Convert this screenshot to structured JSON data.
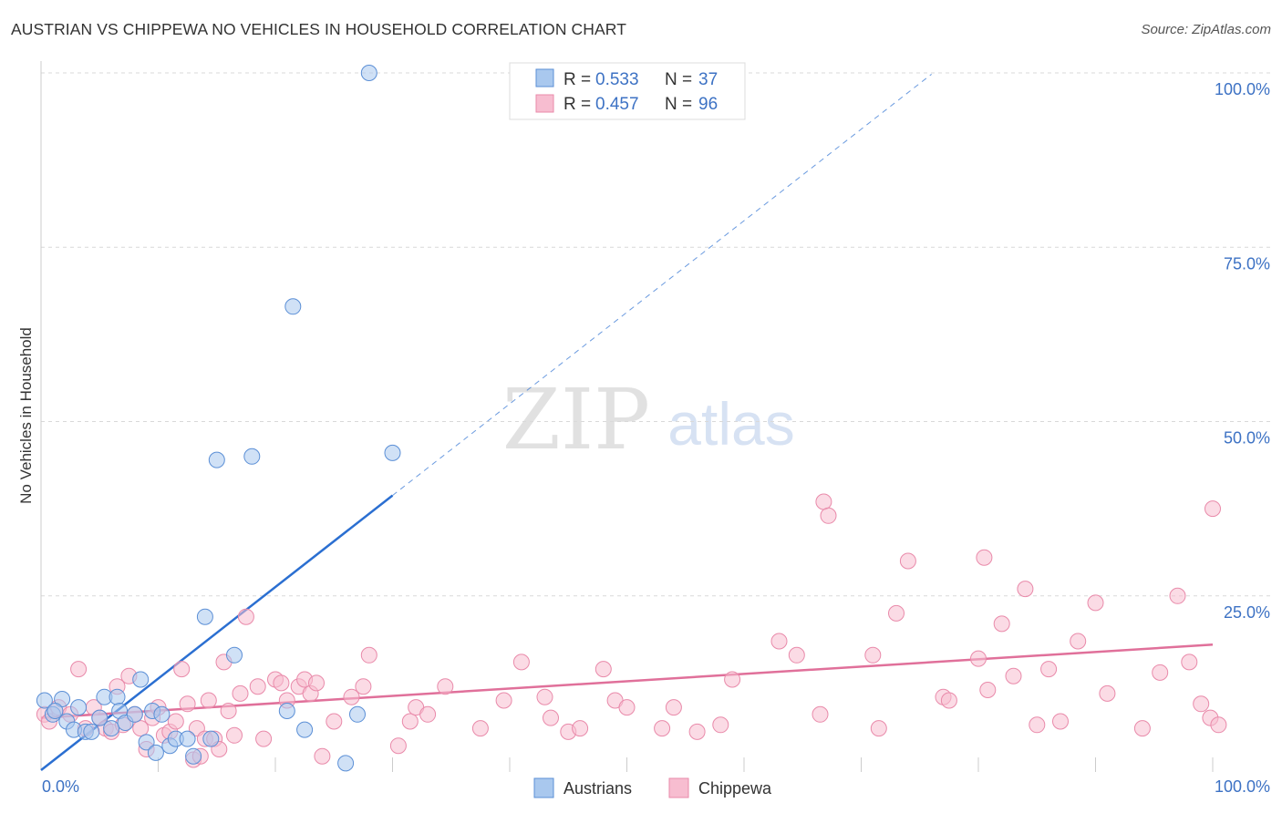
{
  "header": {
    "title": "AUSTRIAN VS CHIPPEWA NO VEHICLES IN HOUSEHOLD CORRELATION CHART",
    "source": "Source: ZipAtlas.com"
  },
  "watermark": {
    "zip": "ZIP",
    "atlas": "atlas"
  },
  "colors": {
    "austrians_fill": "#a9c8ee",
    "austrians_stroke": "#5b8fd6",
    "austrians_line": "#2b6fd1",
    "chippewa_fill": "#f7bdd0",
    "chippewa_stroke": "#e98aaa",
    "chippewa_line": "#e0709a",
    "axis_value": "#3d72c4",
    "grid": "#d9d9d9"
  },
  "legend": {
    "r_label": "R =",
    "n_label": "N =",
    "austrians": {
      "r": "0.533",
      "n": "37"
    },
    "chippewa": {
      "r": "0.457",
      "n": "96"
    }
  },
  "chart_data": {
    "type": "scatter",
    "title": "AUSTRIAN VS CHIPPEWA NO VEHICLES IN HOUSEHOLD CORRELATION CHART",
    "xlabel": "",
    "ylabel": "No Vehicles in Household",
    "xlim": [
      0,
      100
    ],
    "ylim": [
      0,
      100
    ],
    "x_tick_labels": {
      "0": "0.0%",
      "100": "100.0%"
    },
    "y_ticks": [
      25,
      50,
      75,
      100
    ],
    "y_tick_labels": [
      "25.0%",
      "50.0%",
      "75.0%",
      "100.0%"
    ],
    "grid": true,
    "legend_bottom": [
      "Austrians",
      "Chippewa"
    ],
    "series": [
      {
        "name": "Austrians",
        "r": 0.533,
        "n": 37,
        "trend": {
          "x0": 0,
          "y0": 0,
          "x1": 30,
          "y1": 39.4,
          "extend_to_x": 76
        },
        "points": [
          [
            0.3,
            10.0
          ],
          [
            1.0,
            8.0
          ],
          [
            1.8,
            10.2
          ],
          [
            2.2,
            7.0
          ],
          [
            2.8,
            5.8
          ],
          [
            3.2,
            9.0
          ],
          [
            3.8,
            5.5
          ],
          [
            4.3,
            5.5
          ],
          [
            5.0,
            7.5
          ],
          [
            5.4,
            10.5
          ],
          [
            6.0,
            6.0
          ],
          [
            6.5,
            10.5
          ],
          [
            6.7,
            8.5
          ],
          [
            7.2,
            6.8
          ],
          [
            8.0,
            8.0
          ],
          [
            8.5,
            13.0
          ],
          [
            9.0,
            4.0
          ],
          [
            9.5,
            8.5
          ],
          [
            9.8,
            2.5
          ],
          [
            10.3,
            8.0
          ],
          [
            11.0,
            3.5
          ],
          [
            11.5,
            4.5
          ],
          [
            12.5,
            4.5
          ],
          [
            13.0,
            2.0
          ],
          [
            14.0,
            22.0
          ],
          [
            14.5,
            4.5
          ],
          [
            15.0,
            44.5
          ],
          [
            16.5,
            16.5
          ],
          [
            18.0,
            45.0
          ],
          [
            21.0,
            8.5
          ],
          [
            21.5,
            66.5
          ],
          [
            22.5,
            5.8
          ],
          [
            26.0,
            1.0
          ],
          [
            27.0,
            8.0
          ],
          [
            28.0,
            100.0
          ],
          [
            30.0,
            45.5
          ],
          [
            1.2,
            8.5
          ]
        ]
      },
      {
        "name": "Chippewa",
        "r": 0.457,
        "n": 96,
        "trend": {
          "x0": 0,
          "y0": 7.5,
          "x1": 100,
          "y1": 18.0
        },
        "points": [
          [
            0.3,
            8.0
          ],
          [
            0.7,
            7.0
          ],
          [
            1.5,
            9.0
          ],
          [
            2.5,
            8.0
          ],
          [
            3.2,
            14.5
          ],
          [
            3.8,
            6.0
          ],
          [
            4.5,
            9.0
          ],
          [
            5.0,
            7.5
          ],
          [
            5.5,
            6.0
          ],
          [
            6.0,
            5.5
          ],
          [
            6.5,
            12.0
          ],
          [
            7.0,
            6.5
          ],
          [
            7.5,
            13.5
          ],
          [
            8.0,
            8.0
          ],
          [
            8.5,
            6.0
          ],
          [
            9.0,
            3.0
          ],
          [
            9.5,
            7.5
          ],
          [
            10.0,
            9.0
          ],
          [
            10.5,
            5.0
          ],
          [
            11.0,
            5.5
          ],
          [
            11.5,
            7.0
          ],
          [
            12.0,
            14.5
          ],
          [
            12.5,
            9.5
          ],
          [
            13.0,
            1.5
          ],
          [
            13.3,
            6.0
          ],
          [
            13.6,
            2.0
          ],
          [
            14.0,
            4.5
          ],
          [
            14.3,
            10.0
          ],
          [
            14.8,
            4.5
          ],
          [
            15.2,
            3.0
          ],
          [
            15.6,
            15.5
          ],
          [
            16.0,
            8.5
          ],
          [
            16.5,
            5.0
          ],
          [
            17.0,
            11.0
          ],
          [
            17.5,
            22.0
          ],
          [
            18.5,
            12.0
          ],
          [
            19.0,
            4.5
          ],
          [
            20.0,
            13.0
          ],
          [
            20.5,
            12.5
          ],
          [
            21.0,
            10.0
          ],
          [
            22.0,
            12.0
          ],
          [
            22.5,
            13.0
          ],
          [
            23.0,
            11.0
          ],
          [
            23.5,
            12.5
          ],
          [
            24.0,
            2.0
          ],
          [
            25.0,
            7.0
          ],
          [
            26.5,
            10.5
          ],
          [
            27.5,
            12.0
          ],
          [
            28.0,
            16.5
          ],
          [
            30.5,
            3.5
          ],
          [
            31.5,
            7.0
          ],
          [
            32.0,
            9.0
          ],
          [
            33.0,
            8.0
          ],
          [
            34.5,
            12.0
          ],
          [
            37.5,
            6.0
          ],
          [
            39.5,
            10.0
          ],
          [
            41.0,
            15.5
          ],
          [
            43.0,
            10.5
          ],
          [
            43.5,
            7.5
          ],
          [
            45.0,
            5.5
          ],
          [
            46.0,
            6.0
          ],
          [
            48.0,
            14.5
          ],
          [
            49.0,
            10.0
          ],
          [
            50.0,
            9.0
          ],
          [
            53.0,
            6.0
          ],
          [
            54.0,
            9.0
          ],
          [
            56.0,
            5.5
          ],
          [
            58.0,
            6.5
          ],
          [
            59.0,
            13.0
          ],
          [
            63.0,
            18.5
          ],
          [
            64.5,
            16.5
          ],
          [
            66.5,
            8.0
          ],
          [
            66.8,
            38.5
          ],
          [
            67.2,
            36.5
          ],
          [
            71.0,
            16.5
          ],
          [
            71.5,
            6.0
          ],
          [
            73.0,
            22.5
          ],
          [
            74.0,
            30.0
          ],
          [
            77.0,
            10.5
          ],
          [
            77.5,
            10.0
          ],
          [
            80.0,
            16.0
          ],
          [
            80.5,
            30.5
          ],
          [
            80.8,
            11.5
          ],
          [
            82.0,
            21.0
          ],
          [
            83.0,
            13.5
          ],
          [
            84.0,
            26.0
          ],
          [
            85.0,
            6.5
          ],
          [
            86.0,
            14.5
          ],
          [
            87.0,
            7.0
          ],
          [
            88.5,
            18.5
          ],
          [
            90.0,
            24.0
          ],
          [
            91.0,
            11.0
          ],
          [
            94.0,
            6.0
          ],
          [
            95.5,
            14.0
          ],
          [
            97.0,
            25.0
          ],
          [
            98.0,
            15.5
          ]
        ],
        "extra_points": [
          [
            99.0,
            9.5
          ],
          [
            99.8,
            7.5
          ],
          [
            100.0,
            37.5
          ],
          [
            100.5,
            6.5
          ]
        ]
      }
    ]
  }
}
